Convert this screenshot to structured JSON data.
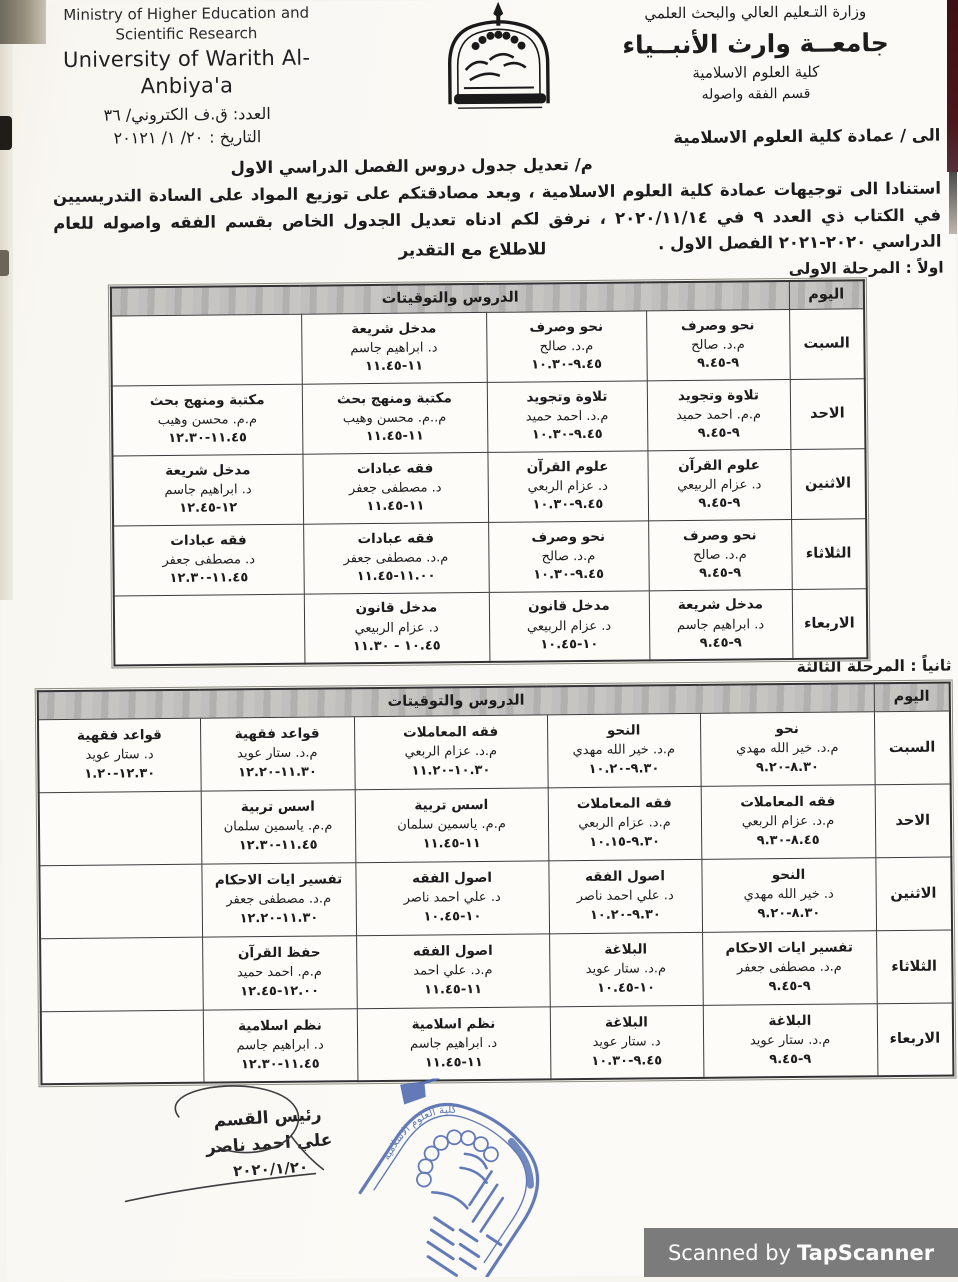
{
  "header": {
    "left": {
      "ministry_en_1": "Ministry of Higher Education and",
      "ministry_en_2": "Scientific Research",
      "university_en": "University of Warith Al-Anbiya'a",
      "number_line": "العدد: ق.ف الكتروني/ ٣٦",
      "date_label": "التاريخ :",
      "date_value": "٢٠١٢١ /١ /٢٠"
    },
    "right": {
      "ministry_ar": "وزارة التـعليم العالي والبحث العلمي",
      "university_ar": "جامعــة وارث الأنبــياء",
      "college_ar": "كلية العلوم الاسلامية",
      "department_ar": "قسم الفقه واصوله"
    },
    "logo_name": "university-of-warith-al-anbiyaa-emblem"
  },
  "intro": {
    "to_line": "الى / عمادة كلية العلوم الاسلامية",
    "subject_line": "م/ تعديل جدول دروس الفصل الدراسي الاول",
    "body_part1": "استنادا الى توجيهات عمادة كلية العلوم الاسلامية ، وبعد مصادقتكم على توزيع المواد على السادة التدريسيين في الكتاب ذي العدد ٩ في ",
    "body_date": "٢٠٢٠/١١/١٤",
    "body_part2": " ، نرفق لكم ادناه تعديل الجدول الخاص بقسم الفقه واصوله للعام  الدراسي ٢٠٢٠-٢٠٢١ الفصل الاول .",
    "regards_line": "للاطلاع مع التقدير"
  },
  "tables": [
    {
      "section_label": "اولاً : المرحلة الاولى",
      "header": {
        "lessons": "الدروس والتوقيتات",
        "day": "اليوم"
      },
      "rows": [
        {
          "day": "السبت",
          "cells": [
            {
              "subject": "نحو وصرف",
              "teacher": "م.د. صالح",
              "time": "٩.٤٥-٩"
            },
            {
              "subject": "نحو وصرف",
              "teacher": "م.د. صالح",
              "time": "١٠.٣٠-٩.٤٥"
            },
            {
              "subject": "مدخل شريعة",
              "teacher": "د. ابراهيم جاسم",
              "time": "١١.٤٥-١١"
            },
            null
          ]
        },
        {
          "day": "الاحد",
          "cells": [
            {
              "subject": "تلاوة وتجويد",
              "teacher": "م.م. احمد حميد",
              "time": "٩.٤٥-٩"
            },
            {
              "subject": "تلاوة وتجويد",
              "teacher": "م.د. احمد حميد",
              "time": "١٠.٣٠-٩.٤٥"
            },
            {
              "subject": "مكتبة ومنهج بحث",
              "teacher": "م..م. محسن وهيب",
              "time": "١١.٤٥-١١"
            },
            {
              "subject": "مكتبة ومنهج بحث",
              "teacher": "م.م. محسن وهيب",
              "time": "١٢.٣٠-١١.٤٥"
            }
          ]
        },
        {
          "day": "الاثنين",
          "cells": [
            {
              "subject": "علوم القرآن",
              "teacher": "د. عزام الربيعي",
              "time": "٩.٤٥-٩"
            },
            {
              "subject": "علوم القرآن",
              "teacher": "د. عزام الربعي",
              "time": "١٠.٣٠-٩.٤٥"
            },
            {
              "subject": "فقه عبادات",
              "teacher": "د. مصطفى جعفر",
              "time": "١١.٤٥-١١"
            },
            {
              "subject": "مدخل شريعة",
              "teacher": "د. ابراهيم جاسم",
              "time": "١٢.٤٥-١٢"
            }
          ]
        },
        {
          "day": "الثلاثاء",
          "cells": [
            {
              "subject": "نحو وصرف",
              "teacher": "م.د. صالح",
              "time": "٩.٤٥-٩"
            },
            {
              "subject": "نحو وصرف",
              "teacher": "م.د. صالح",
              "time": "١٠.٣٠-٩.٤٥"
            },
            {
              "subject": "فقه عبادات",
              "teacher": "م.د. مصطفى جعفر",
              "time": "١١.٤٥-١١.٠٠"
            },
            {
              "subject": "فقه عبادات",
              "teacher": "د. مصطفى جعفر",
              "time": "١٢.٣٠-١١.٤٥"
            }
          ]
        },
        {
          "day": "الاربعاء",
          "cells": [
            {
              "subject": "مدخل شريعة",
              "teacher": "د. ابراهيم جاسم",
              "time": "٩.٤٥-٩"
            },
            {
              "subject": "مدخل قانون",
              "teacher": "د. عزام الربيعي",
              "time": "١٠.٤٥-١٠"
            },
            {
              "subject": "مدخل قانون",
              "teacher": "د. عزام الربيعي",
              "time": "١١.٣٠ - ١٠.٤٥"
            },
            null
          ]
        }
      ]
    },
    {
      "section_label": "ثانياً : المرحلة الثالثة",
      "header": {
        "lessons": "الدروس والتوقيتات",
        "day": "اليوم"
      },
      "rows": [
        {
          "day": "السبت",
          "cells": [
            {
              "subject": "نحو",
              "teacher": "م.د. خير الله مهدي",
              "time": "٩.٢٠-٨.٣٠"
            },
            {
              "subject": "النحو",
              "teacher": "م.د. خير الله مهدي",
              "time": "١٠.٢٠-٩.٣٠"
            },
            {
              "subject": "فقه المعاملات",
              "teacher": "م.د. عزام الربعي",
              "time": "١١.٢٠-١٠.٣٠"
            },
            {
              "subject": "قواعد فقهية",
              "teacher": "م.د. ستار عويد",
              "time": "١٢.٢٠-١١.٣٠"
            },
            {
              "subject": "قواعد فقهية",
              "teacher": "د. ستار عويد",
              "time": "١.٢٠-١٢.٣٠"
            }
          ]
        },
        {
          "day": "الاحد",
          "cells": [
            {
              "subject": "فقه المعاملات",
              "teacher": "م.د. عزام الربعي",
              "time": "٩.٣٠-٨.٤٥"
            },
            {
              "subject": "فقه المعاملات",
              "teacher": "م.د. عزام الربعي",
              "time": "١٠.١٥-٩.٣٠"
            },
            {
              "subject": "اسس تربية",
              "teacher": "م.م. ياسمين سلمان",
              "time": "١١.٤٥-١١"
            },
            {
              "subject": "اسس تربية",
              "teacher": "م.م. ياسمين سلمان",
              "time": "١٢.٣٠-١١.٤٥"
            },
            null
          ]
        },
        {
          "day": "الاثنين",
          "cells": [
            {
              "subject": "النحو",
              "teacher": "د. خير الله مهدي",
              "time": "٩.٢٠-٨.٣٠"
            },
            {
              "subject": "اصول الفقه",
              "teacher": "د. علي احمد ناصر",
              "time": "١٠.٢٠-٩.٣٠"
            },
            {
              "subject": "اصول الفقه",
              "teacher": "د. علي احمد ناصر",
              "time": "١٠.٤٥-١٠"
            },
            {
              "subject": "تفسير ايات الاحكام",
              "teacher": "م.د. مصطفى جعفر",
              "time": "١٢.٢٠-١١.٣٠"
            },
            null
          ]
        },
        {
          "day": "الثلاثاء",
          "cells": [
            {
              "subject": "تفسير ايات الاحكام",
              "teacher": "م.د. مصطفى جعفر",
              "time": "٩.٤٥-٩"
            },
            {
              "subject": "البلاغة",
              "teacher": "م.د. ستار عويد",
              "time": "١٠.٤٥-١٠"
            },
            {
              "subject": "اصول الفقه",
              "teacher": "م.د. علي احمد",
              "time": "١١.٤٥-١١"
            },
            {
              "subject": "حفظ القرآن",
              "teacher": "م.م. احمد حميد",
              "time": "١٢.٤٥-١٢.٠٠"
            },
            null
          ]
        },
        {
          "day": "الاربعاء",
          "cells": [
            {
              "subject": "البلاغة",
              "teacher": "م.د. ستار عويد",
              "time": "٩.٤٥-٩"
            },
            {
              "subject": "البلاغة",
              "teacher": "د. ستار عويد",
              "time": "١٠.٣٠-٩.٤٥"
            },
            {
              "subject": "نظم اسلامية",
              "teacher": "د. ابراهيم جاسم",
              "time": "١١.٤٥-١١"
            },
            {
              "subject": "نظم اسلامية",
              "teacher": "د. ابراهيم جاسم",
              "time": "١٢.٣٠-١١.٤٥"
            },
            null
          ]
        }
      ]
    }
  ],
  "signature": {
    "title": "رئيس القسم",
    "name": "علي احمد ناصر",
    "date": "٢٠٢٠/١/٢٠",
    "stamp_name": "islamic-sciences-college-blue-stamp"
  },
  "scanner": {
    "prefix": "Scanned by",
    "brand": "TapScanner"
  },
  "colors": {
    "stamp_blue": "#4e6ab0",
    "edge_maroon": "#471319",
    "table_header_gray": "#b9b8b6",
    "scanner_bar_gray": "#7b7b7b",
    "ink": "#1c1c1c"
  }
}
